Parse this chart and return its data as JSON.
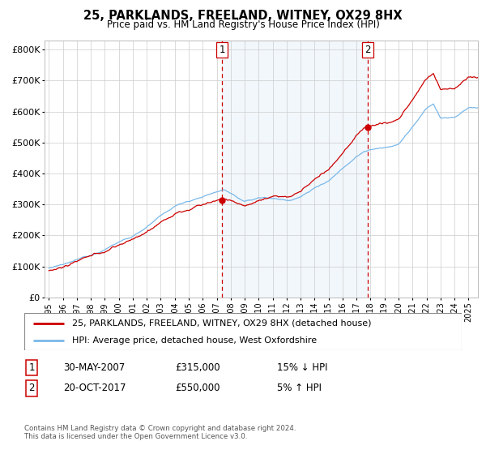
{
  "title": "25, PARKLANDS, FREELAND, WITNEY, OX29 8HX",
  "subtitle": "Price paid vs. HM Land Registry's House Price Index (HPI)",
  "ylabel_ticks": [
    "£0",
    "£100K",
    "£200K",
    "£300K",
    "£400K",
    "£500K",
    "£600K",
    "£700K",
    "£800K"
  ],
  "ytick_values": [
    0,
    100000,
    200000,
    300000,
    400000,
    500000,
    600000,
    700000,
    800000
  ],
  "ylim": [
    0,
    830000
  ],
  "sale1": {
    "date_num": 2007.38,
    "price": 315000,
    "label": "1",
    "pct": "15%",
    "dir": "↓",
    "date_str": "30-MAY-2007"
  },
  "sale2": {
    "date_num": 2017.79,
    "price": 550000,
    "label": "2",
    "pct": "5%",
    "dir": "↑",
    "date_str": "20-OCT-2017"
  },
  "legend_line1": "25, PARKLANDS, FREELAND, WITNEY, OX29 8HX (detached house)",
  "legend_line2": "HPI: Average price, detached house, West Oxfordshire",
  "footer1": "Contains HM Land Registry data © Crown copyright and database right 2024.",
  "footer2": "This data is licensed under the Open Government Licence v3.0.",
  "table_row1": [
    "1",
    "30-MAY-2007",
    "£315,000",
    "15% ↓ HPI"
  ],
  "table_row2": [
    "2",
    "20-OCT-2017",
    "£550,000",
    "5% ↑ HPI"
  ],
  "hpi_color": "#7ab8e8",
  "price_color": "#cc0000",
  "sale_marker_color": "#cc0000",
  "dashed_line_color": "#cc0000",
  "shade_color": "#daeaf7",
  "background_color": "#ffffff",
  "grid_color": "#cccccc"
}
